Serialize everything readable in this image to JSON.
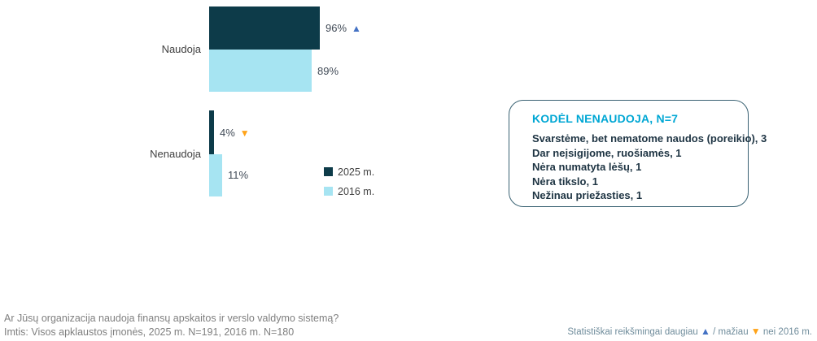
{
  "chart_data": {
    "type": "bar",
    "orientation": "horizontal",
    "title": "",
    "categories": [
      "Naudoja",
      "Nenaudoja"
    ],
    "series": [
      {
        "name": "2025 m.",
        "color": "#0d3b49",
        "values": [
          96,
          4
        ],
        "labels": [
          "96%",
          "4%"
        ],
        "significance_vs_2016": [
          "higher",
          "lower"
        ]
      },
      {
        "name": "2016 m.",
        "color": "#a6e4f2",
        "values": [
          89,
          11
        ],
        "labels": [
          "89%",
          "11%"
        ],
        "significance_vs_2016": [
          null,
          null
        ]
      }
    ],
    "value_unit": "%",
    "xlim": [
      0,
      100
    ],
    "axes_visible": false,
    "grid": false,
    "legend_position": "right of Nenaudoja group"
  },
  "symbols": {
    "up": "▲",
    "down": "▼"
  },
  "callout": {
    "title": "KODĖL NENAUDOJA, N=7",
    "items": [
      "Svarstėme, bet nematome naudos (poreikio), 3",
      "Dar neįsigijome, ruošiamės, 1",
      "Nėra numatyta lėšų, 1",
      "Nėra tikslo, 1",
      "Nežinau priežasties, 1"
    ]
  },
  "footer": {
    "question": "Ar Jūsų organizacija naudoja finansų apskaitos ir verslo valdymo sistemą?",
    "sample": "Imtis: Visos apklaustos įmonės, 2025 m. N=191, 2016 m. N=180"
  },
  "note": {
    "prefix": "Statistiškai reikšmingai daugiau",
    "middle": "/ mažiau",
    "suffix": "nei 2016 m."
  },
  "colors": {
    "series_2025": "#0d3b49",
    "series_2016": "#a6e4f2",
    "accent_cyan": "#00a7d4",
    "significance_up": "#4472c4",
    "significance_down": "#ffa319",
    "callout_border": "#3a6273",
    "footer_gray": "#7f7f7f",
    "note_teal_gray": "#6f8c9b",
    "value_label": "#414b57"
  }
}
